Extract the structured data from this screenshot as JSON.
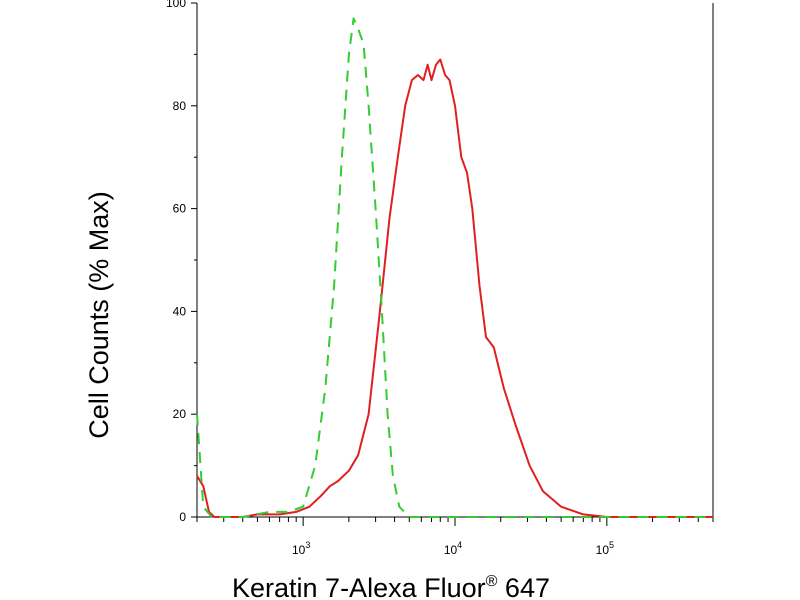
{
  "chart_data": {
    "type": "line",
    "title": "",
    "xlabel": "Keratin 7-Alexa Fluor",
    "xlabel_superscript": "®",
    "xlabel_suffix": " 647",
    "ylabel": "Cell Counts (% Max)",
    "x_scale": "log",
    "xlim": [
      200,
      500000
    ],
    "ylim": [
      0,
      100
    ],
    "x_ticks": [
      {
        "base": "10",
        "exp": "3",
        "value": 1000
      },
      {
        "base": "10",
        "exp": "4",
        "value": 10000
      },
      {
        "base": "10",
        "exp": "5",
        "value": 100000
      }
    ],
    "y_ticks": [
      "0",
      "20",
      "40",
      "60",
      "80",
      "100"
    ],
    "grid": false,
    "legend": "none",
    "series": [
      {
        "color": "#e02020",
        "style": "solid",
        "points": [
          [
            200,
            8
          ],
          [
            220,
            6
          ],
          [
            240,
            1
          ],
          [
            260,
            0
          ],
          [
            400,
            0
          ],
          [
            500,
            0.5
          ],
          [
            700,
            0.5
          ],
          [
            900,
            1
          ],
          [
            1100,
            2
          ],
          [
            1300,
            4
          ],
          [
            1500,
            6
          ],
          [
            1700,
            7
          ],
          [
            2000,
            9
          ],
          [
            2300,
            12
          ],
          [
            2700,
            20
          ],
          [
            3200,
            40
          ],
          [
            3700,
            58
          ],
          [
            4200,
            70
          ],
          [
            4700,
            80
          ],
          [
            5200,
            85
          ],
          [
            5700,
            86
          ],
          [
            6200,
            85
          ],
          [
            6600,
            88
          ],
          [
            7000,
            85
          ],
          [
            7500,
            88
          ],
          [
            8000,
            89
          ],
          [
            8600,
            86
          ],
          [
            9200,
            85
          ],
          [
            10000,
            80
          ],
          [
            11000,
            70
          ],
          [
            12000,
            67
          ],
          [
            13000,
            60
          ],
          [
            14500,
            45
          ],
          [
            16000,
            35
          ],
          [
            18000,
            33
          ],
          [
            21000,
            25
          ],
          [
            25000,
            18
          ],
          [
            31000,
            10
          ],
          [
            38000,
            5
          ],
          [
            50000,
            2
          ],
          [
            70000,
            0.5
          ],
          [
            100000,
            0
          ],
          [
            500000,
            0
          ]
        ]
      },
      {
        "color": "#33cc33",
        "style": "dashed",
        "points": [
          [
            200,
            20
          ],
          [
            220,
            2
          ],
          [
            250,
            0
          ],
          [
            400,
            0
          ],
          [
            600,
            1
          ],
          [
            800,
            1
          ],
          [
            1000,
            2
          ],
          [
            1200,
            10
          ],
          [
            1400,
            25
          ],
          [
            1600,
            45
          ],
          [
            1800,
            70
          ],
          [
            2000,
            90
          ],
          [
            2150,
            97
          ],
          [
            2300,
            95
          ],
          [
            2500,
            92
          ],
          [
            2700,
            80
          ],
          [
            3000,
            60
          ],
          [
            3300,
            40
          ],
          [
            3600,
            20
          ],
          [
            3900,
            8
          ],
          [
            4300,
            2
          ],
          [
            5000,
            0
          ],
          [
            500000,
            0
          ]
        ]
      }
    ]
  }
}
